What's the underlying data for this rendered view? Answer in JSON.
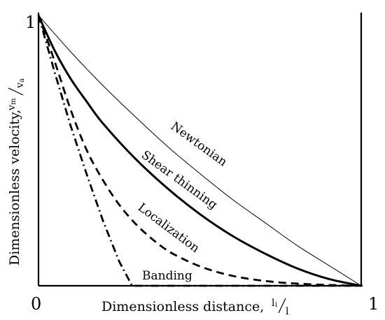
{
  "chart_data": {
    "type": "line",
    "xlabel": {
      "main": "Dimensionless distance,",
      "num": "l",
      "num_sub": "i",
      "den": "l"
    },
    "ylabel": {
      "main": "Dimensionless velocity,",
      "num": "v",
      "num_sub": "m",
      "den": "v",
      "den_sub": "a"
    },
    "xlim": [
      0,
      1
    ],
    "ylim": [
      0,
      1
    ],
    "ticks": {
      "x0": "0",
      "x1": "1",
      "y1": "1"
    },
    "grid": false,
    "legend": "none",
    "series": [
      {
        "name": "Newtonian",
        "style": "thin",
        "x": [
          0,
          0.1,
          0.2,
          0.3,
          0.4,
          0.5,
          0.6,
          0.7,
          0.8,
          0.9,
          1.0
        ],
        "y": [
          1.0,
          0.865,
          0.74,
          0.625,
          0.515,
          0.415,
          0.32,
          0.235,
          0.15,
          0.075,
          0.0
        ]
      },
      {
        "name": "Shear thinning",
        "style": "thick",
        "x": [
          0,
          0.05,
          0.1,
          0.15,
          0.2,
          0.3,
          0.4,
          0.5,
          0.6,
          0.7,
          0.8,
          0.9,
          1.0
        ],
        "y": [
          1.0,
          0.87,
          0.765,
          0.68,
          0.6,
          0.47,
          0.36,
          0.265,
          0.185,
          0.12,
          0.065,
          0.025,
          0.0
        ]
      },
      {
        "name": "Localization",
        "style": "dashed",
        "x": [
          0,
          0.05,
          0.1,
          0.15,
          0.2,
          0.25,
          0.3,
          0.35,
          0.4,
          0.45,
          0.5,
          0.55,
          0.6,
          0.65,
          0.7,
          0.75,
          0.8,
          0.85,
          0.9,
          0.95,
          1.0
        ],
        "y": [
          1.0,
          0.83,
          0.65,
          0.5,
          0.39,
          0.3,
          0.23,
          0.175,
          0.13,
          0.098,
          0.072,
          0.052,
          0.037,
          0.026,
          0.018,
          0.012,
          0.008,
          0.005,
          0.003,
          0.001,
          0.0
        ]
      },
      {
        "name": "Banding",
        "style": "dashdot",
        "x": [
          0,
          0.05,
          0.1,
          0.15,
          0.2,
          0.25,
          0.29,
          0.5,
          0.75,
          1.0
        ],
        "y": [
          1.0,
          0.79,
          0.59,
          0.41,
          0.24,
          0.09,
          0.0,
          0.0,
          0.0,
          0.0
        ]
      }
    ]
  }
}
